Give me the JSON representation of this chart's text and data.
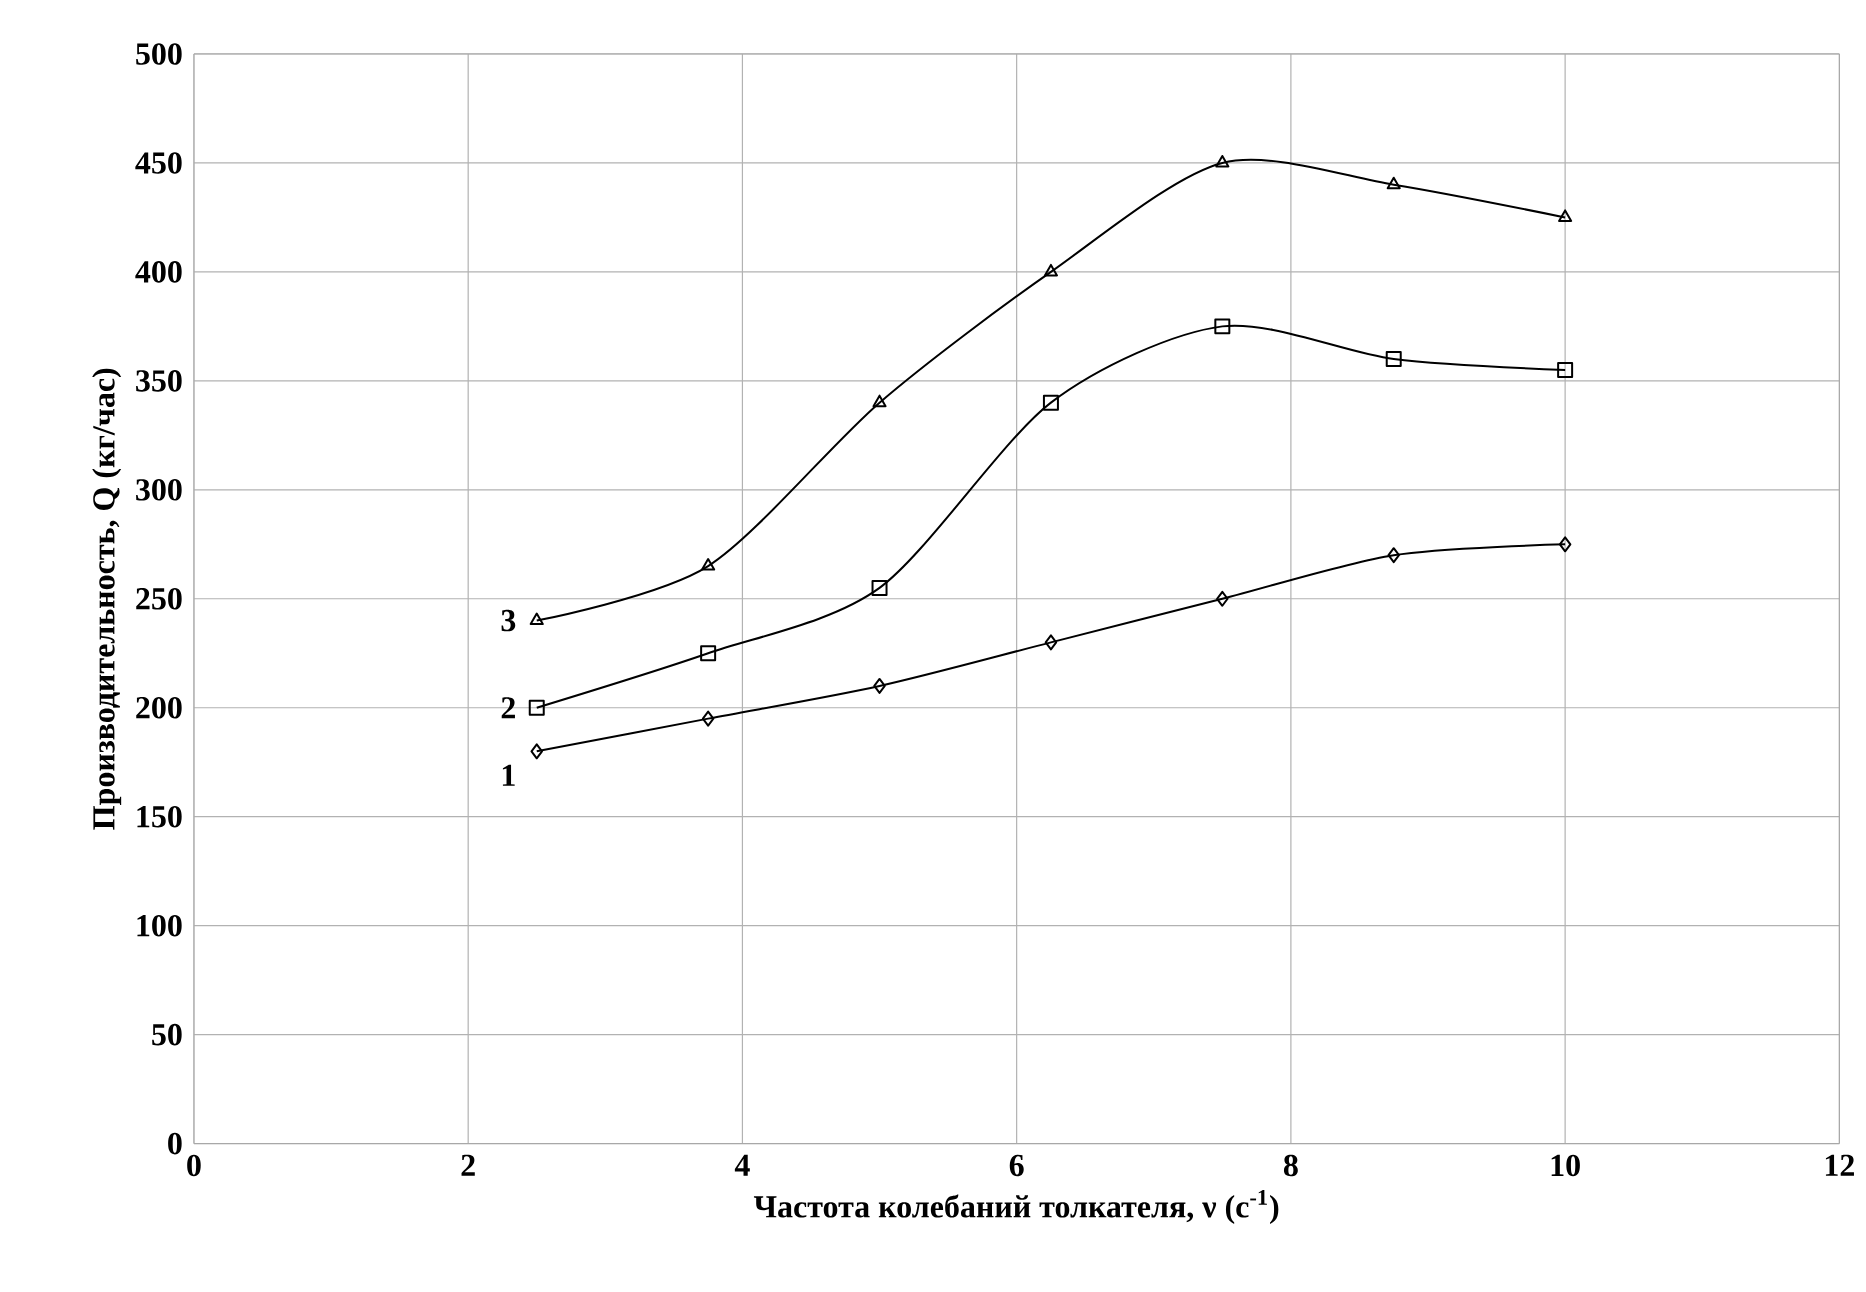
{
  "chart_data": {
    "type": "line",
    "xlabel": "Частота колебаний толкателя, ν (с$^{-1}$)",
    "ylabel": "Производительность, Q (кг/час)",
    "x": [
      2.5,
      3.75,
      5,
      6.25,
      7.5,
      8.75,
      10
    ],
    "series": [
      {
        "name": "1",
        "color": "#000000",
        "marker": "diamond",
        "values": [
          180,
          195,
          210,
          230,
          250,
          270,
          275
        ]
      },
      {
        "name": "2",
        "color": "#000000",
        "marker": "square",
        "values": [
          200,
          225,
          255,
          340,
          375,
          360,
          355
        ]
      },
      {
        "name": "3",
        "color": "#000000",
        "marker": "triangle",
        "values": [
          240,
          265,
          340,
          400,
          450,
          440,
          425
        ]
      }
    ],
    "xlim": [
      0,
      12
    ],
    "xticks": [
      0,
      2,
      4,
      6,
      8,
      10,
      12
    ],
    "ylim": [
      0,
      500
    ],
    "yticks": [
      0,
      50,
      100,
      150,
      200,
      250,
      300,
      350,
      400,
      450,
      500
    ],
    "grid": true,
    "legend": false,
    "line_style": "solid"
  }
}
